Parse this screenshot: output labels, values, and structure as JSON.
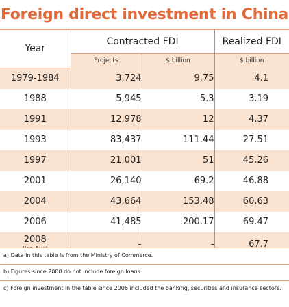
{
  "chart_data": {
    "type": "table",
    "title": "Foreign direct investment in China",
    "column_groups": [
      "Year",
      "Contracted FDI",
      "Realized FDI"
    ],
    "sub_headers": [
      "",
      "Projects",
      "$ billion",
      "$ billion"
    ],
    "rows": [
      {
        "year": "1979-1984",
        "year_note": "",
        "projects": "3,724",
        "contracted": "9.75",
        "realized": "4.1"
      },
      {
        "year": "1988",
        "year_note": "",
        "projects": "5,945",
        "contracted": "5.3",
        "realized": "3.19"
      },
      {
        "year": "1991",
        "year_note": "",
        "projects": "12,978",
        "contracted": "12",
        "realized": "4.37"
      },
      {
        "year": "1993",
        "year_note": "",
        "projects": "83,437",
        "contracted": "111.44",
        "realized": "27.51"
      },
      {
        "year": "1997",
        "year_note": "",
        "projects": "21,001",
        "contracted": "51",
        "realized": "45.26"
      },
      {
        "year": "2001",
        "year_note": "",
        "projects": "26,140",
        "contracted": "69.2",
        "realized": "46.88"
      },
      {
        "year": "2004",
        "year_note": "",
        "projects": "43,664",
        "contracted": "153.48",
        "realized": "60.63"
      },
      {
        "year": "2006",
        "year_note": "",
        "projects": "41,485",
        "contracted": "200.17",
        "realized": "69.47"
      },
      {
        "year": "2008",
        "year_note": "(Jan-Aug)",
        "projects": "-",
        "contracted": "-",
        "realized": "67.7"
      }
    ],
    "notes": [
      "a) Data in this table is from the Ministry of Commerce.",
      "b) Figures since 2000 do not include foreign loans.",
      "c) Foreign investment in the table since 2006 included the banking, securities and insurance sectors."
    ]
  },
  "colors": {
    "title": "#e06a3a",
    "stripe": "#f9e2cf",
    "rule": "#e7a27f"
  }
}
